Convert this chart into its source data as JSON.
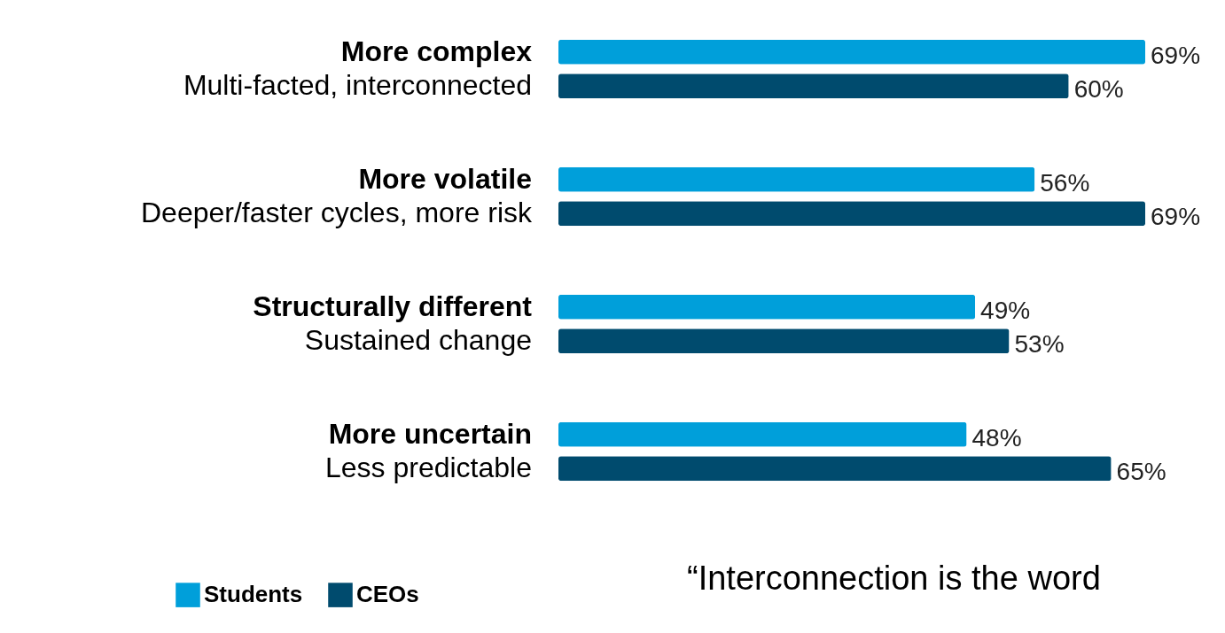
{
  "chart_data": {
    "type": "bar",
    "orientation": "horizontal",
    "categories": [
      "More complex\nMulti-facted, interconnected",
      "More volatile\nDeeper/faster cycles, more risk",
      "Structurally different\nSustained change",
      "More uncertain\nLess predictable"
    ],
    "series": [
      {
        "name": "Students",
        "color": "#009fda",
        "values": [
          69,
          56,
          49,
          48
        ],
        "value_labels": [
          "69%",
          "56%",
          "49%",
          "48%"
        ]
      },
      {
        "name": "CEOs",
        "color": "#004b6e",
        "values": [
          60,
          69,
          53,
          65
        ],
        "value_labels": [
          "60%",
          "69%",
          "53%",
          "65%"
        ]
      }
    ],
    "legend": "bottom left",
    "annotations": [
      "“Interconnection is the word"
    ]
  }
}
